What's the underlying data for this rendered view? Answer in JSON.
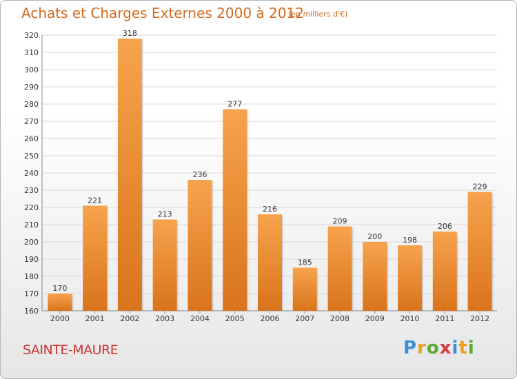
{
  "header": {
    "title": "Achats et Charges Externes 2000 à 2012",
    "subtitle": "(en milliers d'€)"
  },
  "footer": {
    "place": "SAINTE-MAURE",
    "logo": "Proxiti"
  },
  "colors": {
    "bar_light": "#f7a34d",
    "bar_dark": "#d8741c",
    "title": "#d2691e",
    "place": "#cc3333",
    "grid": "#d9d9d9"
  },
  "chart_data": {
    "type": "bar",
    "title": "Achats et Charges Externes 2000 à 2012",
    "subtitle": "(en milliers d'€)",
    "categories": [
      "2000",
      "2001",
      "2002",
      "2003",
      "2004",
      "2005",
      "2006",
      "2007",
      "2008",
      "2009",
      "2010",
      "2011",
      "2012"
    ],
    "values": [
      170,
      221,
      318,
      213,
      236,
      277,
      216,
      185,
      209,
      200,
      198,
      206,
      229
    ],
    "ylim": [
      160,
      320
    ],
    "ytick_step": 10,
    "grid": true,
    "data_labels": true
  }
}
